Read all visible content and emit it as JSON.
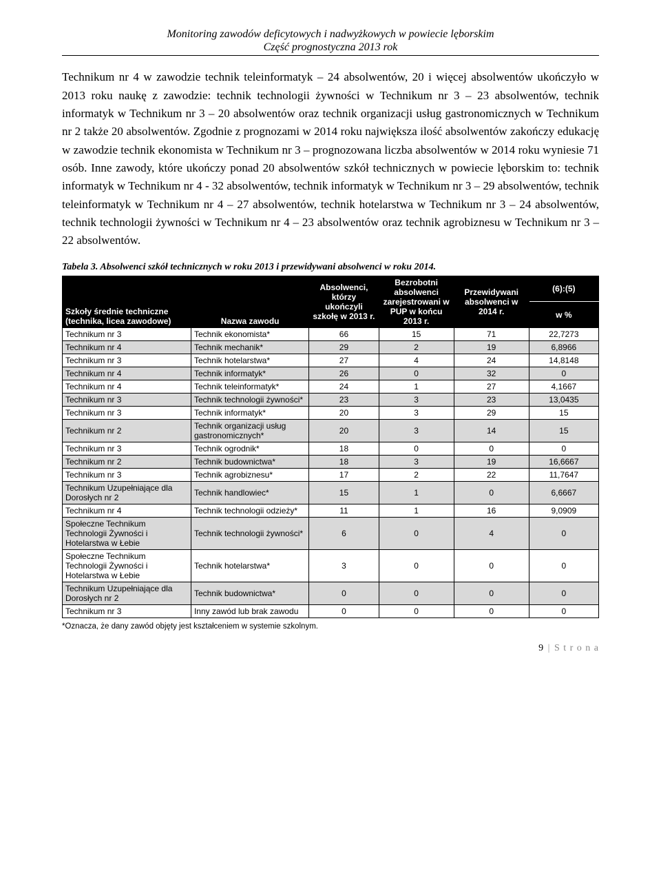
{
  "header": {
    "line1": "Monitoring zawodów deficytowych i nadwyżkowych w powiecie lęborskim",
    "line2": "Część prognostyczna 2013 rok"
  },
  "paragraph": "Technikum nr 4 w zawodzie technik teleinformatyk – 24 absolwentów, 20 i więcej absolwentów ukończyło w 2013 roku naukę z zawodzie: technik technologii żywności w Technikum nr 3 – 23 absolwentów, technik informatyk w Technikum nr 3 – 20 absolwentów oraz technik organizacji usług gastronomicznych w Technikum nr 2 także 20 absolwentów. Zgodnie z prognozami w 2014 roku największa ilość absolwentów zakończy edukację w zawodzie technik ekonomista w Technikum nr 3 – prognozowana liczba absolwentów w 2014 roku wyniesie 71 osób. Inne zawody, które ukończy ponad 20 absolwentów szkół technicznych w powiecie lęborskim to: technik informatyk w Technikum nr 4 - 32 absolwentów, technik informatyk w Technikum nr 3 – 29 absolwentów, technik teleinformatyk w Technikum nr 4 – 27 absolwentów, technik hotelarstwa w Technikum nr 3 – 24 absolwentów, technik technologii żywności w Technikum nr 4 – 23 absolwentów oraz technik agrobiznesu w Technikum nr 3 – 22 absolwentów.",
  "table": {
    "caption": "Tabela 3. Absolwenci szkół technicznych w roku 2013 i przewidywani absolwenci w roku 2014.",
    "headers": {
      "col1": "Szkoły średnie techniczne (technika, licea zawodowe)",
      "col2": "Nazwa zawodu",
      "col3": "Absolwenci, którzy ukończyli szkołę w 2013 r.",
      "col4": "Bezrobotni absolwenci zarejestrowani w PUP w końcu 2013 r.",
      "col5": "Przewidywani absolwenci w 2014 r.",
      "col6_top": "(6):(5)",
      "col6_bot": "w %"
    },
    "rows": [
      {
        "alt": false,
        "school": "Technikum nr 3",
        "prof": "Technik ekonomista*",
        "a": "66",
        "b": "15",
        "c": "71",
        "d": "22,7273"
      },
      {
        "alt": true,
        "school": "Technikum nr 4",
        "prof": "Technik mechanik*",
        "a": "29",
        "b": "2",
        "c": "19",
        "d": "6,8966"
      },
      {
        "alt": false,
        "school": "Technikum nr 3",
        "prof": "Technik hotelarstwa*",
        "a": "27",
        "b": "4",
        "c": "24",
        "d": "14,8148"
      },
      {
        "alt": true,
        "school": "Technikum nr 4",
        "prof": "Technik informatyk*",
        "a": "26",
        "b": "0",
        "c": "32",
        "d": "0"
      },
      {
        "alt": false,
        "school": "Technikum nr 4",
        "prof": "Technik teleinformatyk*",
        "a": "24",
        "b": "1",
        "c": "27",
        "d": "4,1667"
      },
      {
        "alt": true,
        "school": "Technikum nr 3",
        "prof": "Technik technologii żywności*",
        "a": "23",
        "b": "3",
        "c": "23",
        "d": "13,0435"
      },
      {
        "alt": false,
        "school": "Technikum nr 3",
        "prof": "Technik informatyk*",
        "a": "20",
        "b": "3",
        "c": "29",
        "d": "15"
      },
      {
        "alt": true,
        "school": "Technikum nr 2",
        "prof": "Technik organizacji usług gastronomicznych*",
        "a": "20",
        "b": "3",
        "c": "14",
        "d": "15"
      },
      {
        "alt": false,
        "school": "Technikum nr 3",
        "prof": "Technik ogrodnik*",
        "a": "18",
        "b": "0",
        "c": "0",
        "d": "0"
      },
      {
        "alt": true,
        "school": "Technikum nr 2",
        "prof": "Technik budownictwa*",
        "a": "18",
        "b": "3",
        "c": "19",
        "d": "16,6667"
      },
      {
        "alt": false,
        "school": "Technikum nr 3",
        "prof": "Technik agrobiznesu*",
        "a": "17",
        "b": "2",
        "c": "22",
        "d": "11,7647"
      },
      {
        "alt": true,
        "school": "Technikum Uzupełniające dla Dorosłych nr 2",
        "prof": "Technik handlowiec*",
        "a": "15",
        "b": "1",
        "c": "0",
        "d": "6,6667"
      },
      {
        "alt": false,
        "school": "Technikum nr 4",
        "prof": "Technik technologii odzieży*",
        "a": "11",
        "b": "1",
        "c": "16",
        "d": "9,0909"
      },
      {
        "alt": true,
        "school": "Społeczne Technikum Technologii Żywności i Hotelarstwa w Łebie",
        "prof": "Technik technologii żywności*",
        "a": "6",
        "b": "0",
        "c": "4",
        "d": "0"
      },
      {
        "alt": false,
        "school": "Społeczne Technikum Technologii Żywności i Hotelarstwa w Łebie",
        "prof": "Technik hotelarstwa*",
        "a": "3",
        "b": "0",
        "c": "0",
        "d": "0"
      },
      {
        "alt": true,
        "school": "Technikum Uzupełniające dla Dorosłych nr 2",
        "prof": "Technik budownictwa*",
        "a": "0",
        "b": "0",
        "c": "0",
        "d": "0"
      },
      {
        "alt": false,
        "school": "Technikum nr 3",
        "prof": "Inny zawód lub brak zawodu",
        "a": "0",
        "b": "0",
        "c": "0",
        "d": "0"
      }
    ]
  },
  "footnote": "*Oznacza, że dany zawód objęty jest kształceniem w systemie szkolnym.",
  "footer": {
    "page": "9",
    "label": "S t r o n a"
  },
  "colors": {
    "header_bg": "#000000",
    "header_fg": "#ffffff",
    "alt_row": "#d9d9d9",
    "page_bg": "#ffffff"
  }
}
